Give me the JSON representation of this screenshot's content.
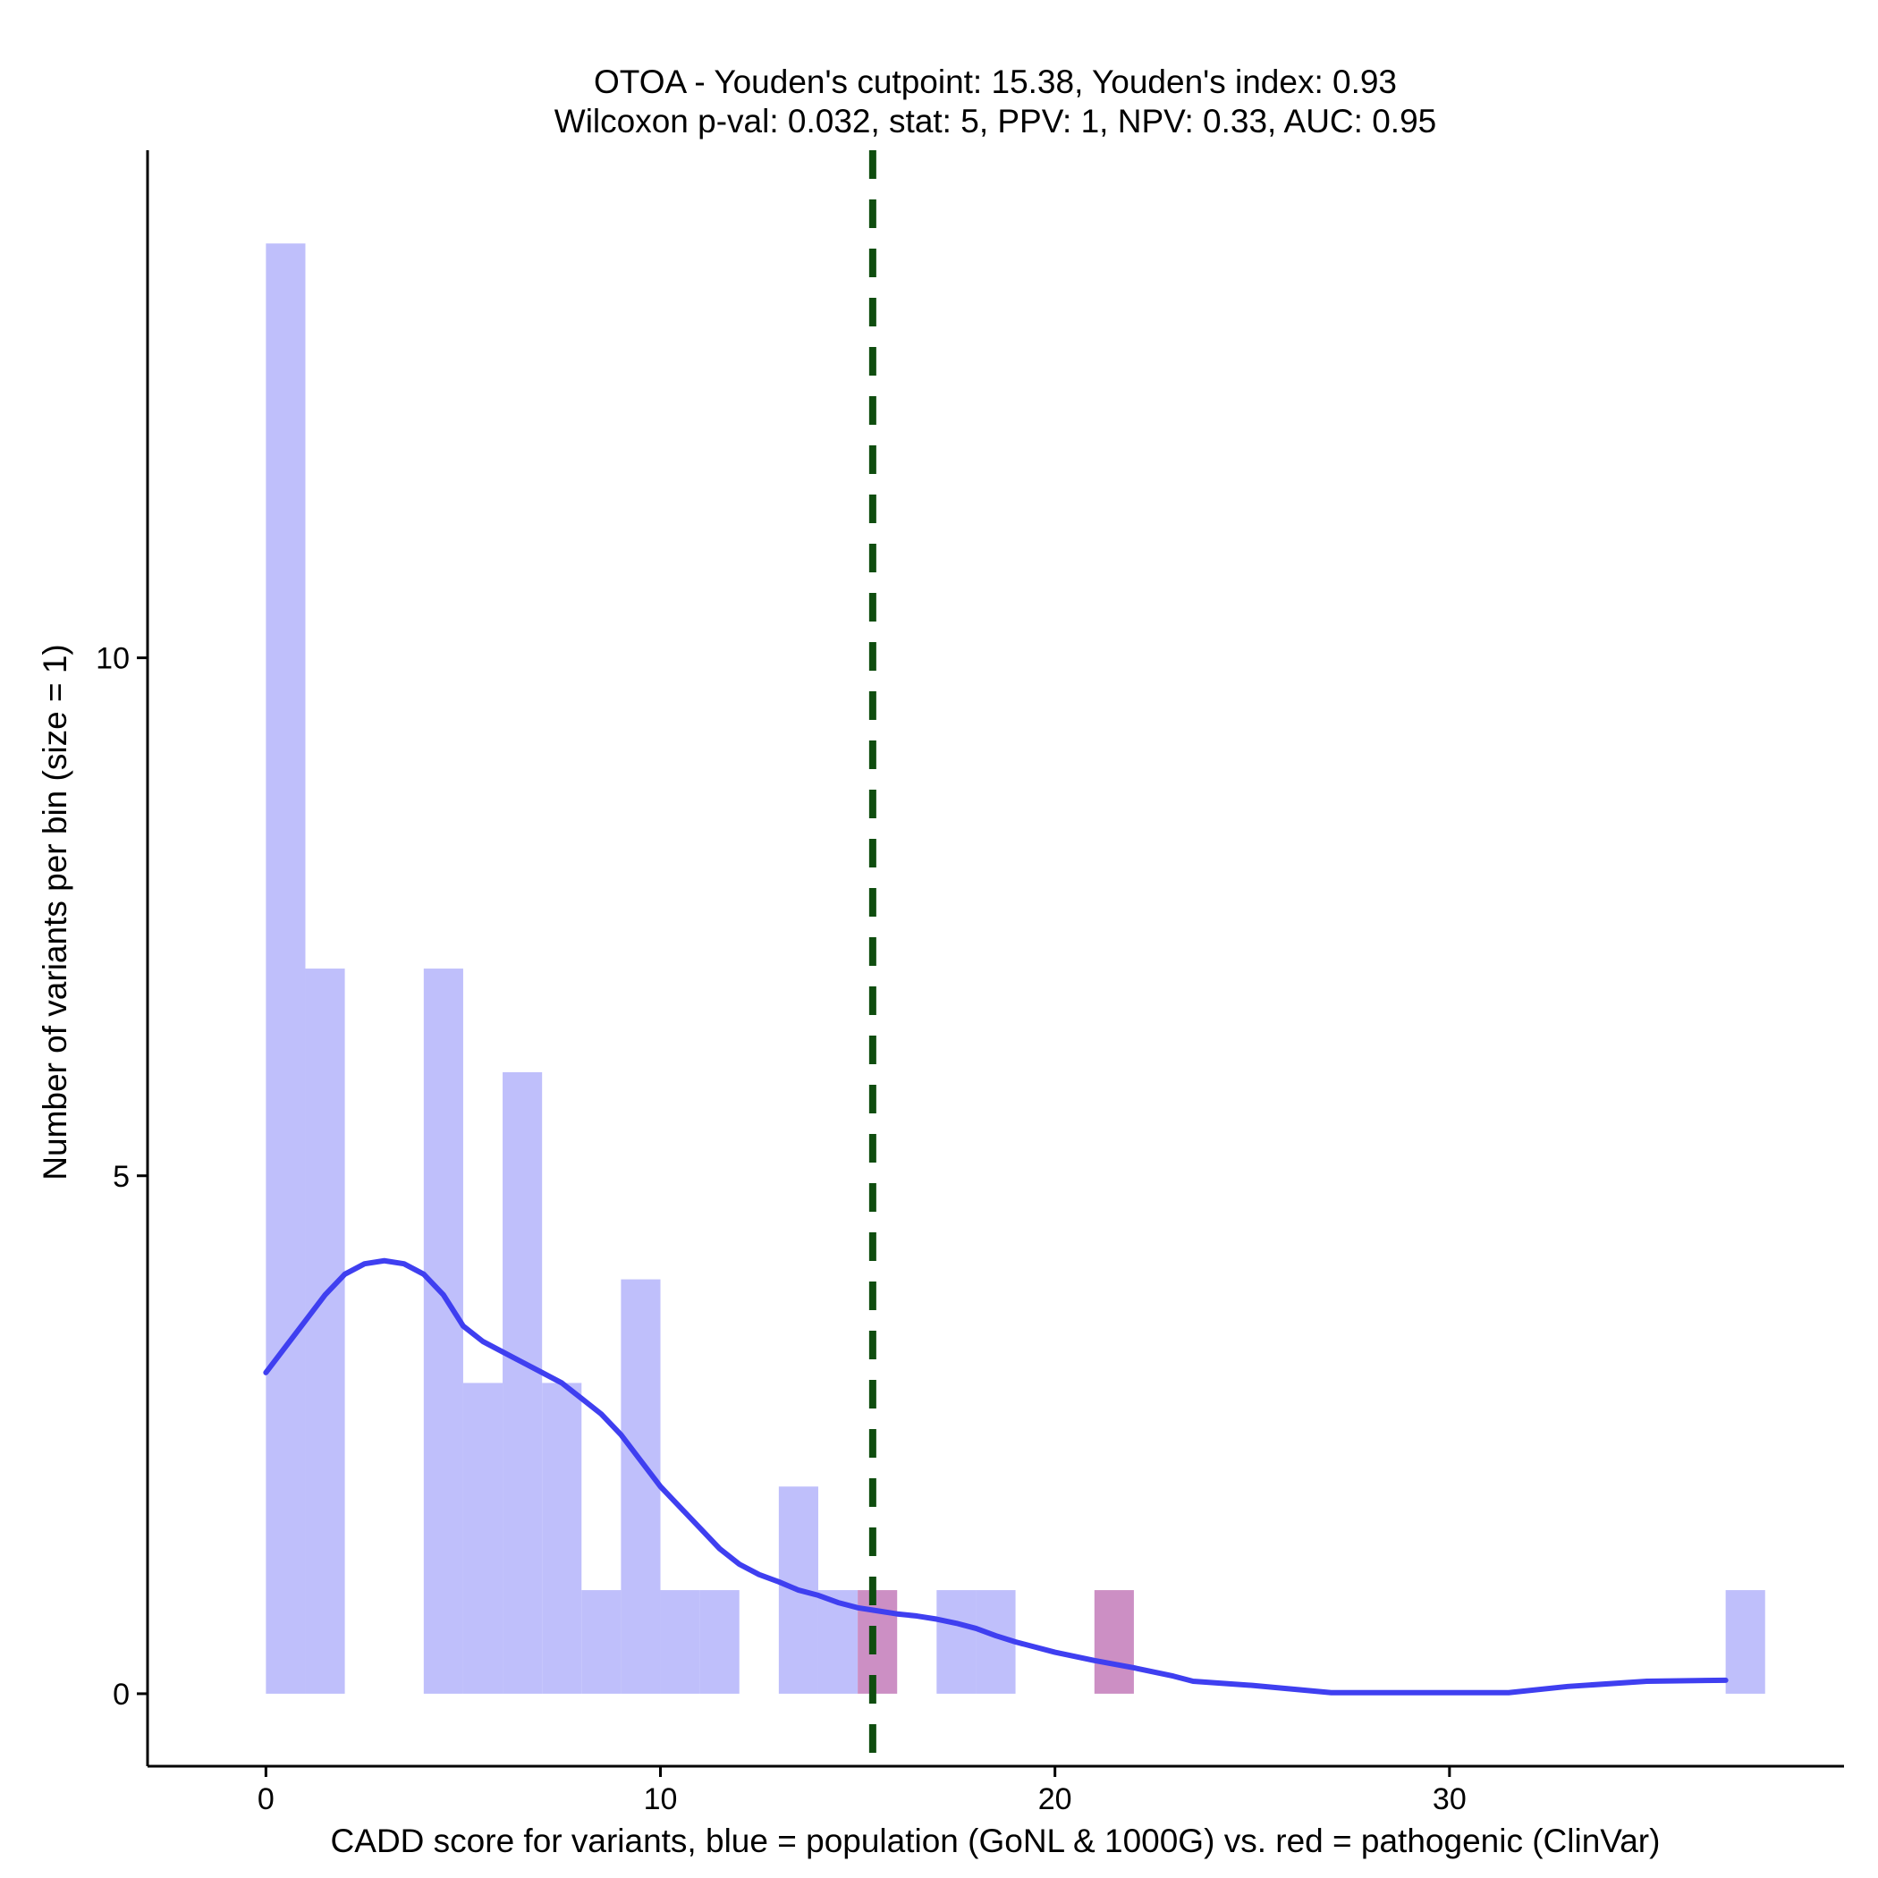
{
  "chart_data": {
    "type": "bar",
    "title_line1": "OTOA - Youden's cutpoint: 15.38, Youden's index: 0.93",
    "title_line2": "Wilcoxon p-val: 0.032, stat: 5, PPV: 1, NPV: 0.33, AUC: 0.95",
    "xlabel": "CADD score for variants, blue = population (GoNL & 1000G) vs. red = pathogenic (ClinVar)",
    "ylabel": "Number of variants per bin (size = 1)",
    "xlim": [
      -3,
      40
    ],
    "ylim": [
      -0.7,
      14.9
    ],
    "x_ticks": [
      0,
      10,
      20,
      30
    ],
    "x_tick_labels": [
      "0",
      "10",
      "20",
      "30"
    ],
    "y_ticks": [
      0,
      5,
      10
    ],
    "y_tick_labels": [
      "0",
      "5",
      "10"
    ],
    "bin_size": 1,
    "cutpoint": 15.38,
    "colors": {
      "population": "#bfbffb",
      "pathogenic": "#cc8fc4",
      "density": "#3f3ff0",
      "cutpoint": "#0f4d0f",
      "axis": "#000000"
    },
    "series": [
      {
        "name": "population",
        "bins": [
          {
            "start": 0,
            "count": 14
          },
          {
            "start": 1,
            "count": 7
          },
          {
            "start": 4,
            "count": 7
          },
          {
            "start": 5,
            "count": 3
          },
          {
            "start": 6,
            "count": 6
          },
          {
            "start": 7,
            "count": 3
          },
          {
            "start": 8,
            "count": 1
          },
          {
            "start": 9,
            "count": 4
          },
          {
            "start": 10,
            "count": 1
          },
          {
            "start": 11,
            "count": 1
          },
          {
            "start": 13,
            "count": 2
          },
          {
            "start": 14,
            "count": 1
          },
          {
            "start": 17,
            "count": 1
          },
          {
            "start": 18,
            "count": 1
          },
          {
            "start": 37,
            "count": 1
          }
        ]
      },
      {
        "name": "pathogenic",
        "bins": [
          {
            "start": 15,
            "count": 1
          },
          {
            "start": 21,
            "count": 1
          }
        ]
      }
    ],
    "density_curve": {
      "x": [
        0,
        0.5,
        1,
        1.5,
        2,
        2.5,
        3,
        3.5,
        4,
        4.5,
        5,
        5.5,
        6,
        6.5,
        7,
        7.5,
        8,
        8.5,
        9,
        9.5,
        10,
        10.5,
        11,
        11.5,
        12,
        12.5,
        13,
        13.5,
        14,
        14.5,
        15,
        15.5,
        16,
        16.5,
        17,
        17.5,
        18,
        18.5,
        19,
        20,
        21,
        22,
        23,
        23.5,
        25,
        27,
        29,
        31.5,
        33,
        35,
        37
      ],
      "y": [
        3.1,
        3.35,
        3.6,
        3.85,
        4.05,
        4.15,
        4.18,
        4.15,
        4.05,
        3.85,
        3.55,
        3.4,
        3.3,
        3.2,
        3.1,
        3.0,
        2.85,
        2.7,
        2.5,
        2.25,
        2.0,
        1.8,
        1.6,
        1.4,
        1.25,
        1.15,
        1.08,
        1.0,
        0.95,
        0.88,
        0.83,
        0.8,
        0.77,
        0.75,
        0.72,
        0.68,
        0.63,
        0.56,
        0.5,
        0.4,
        0.32,
        0.25,
        0.17,
        0.12,
        0.08,
        0.01,
        0.01,
        0.01,
        0.07,
        0.12,
        0.13
      ]
    }
  }
}
